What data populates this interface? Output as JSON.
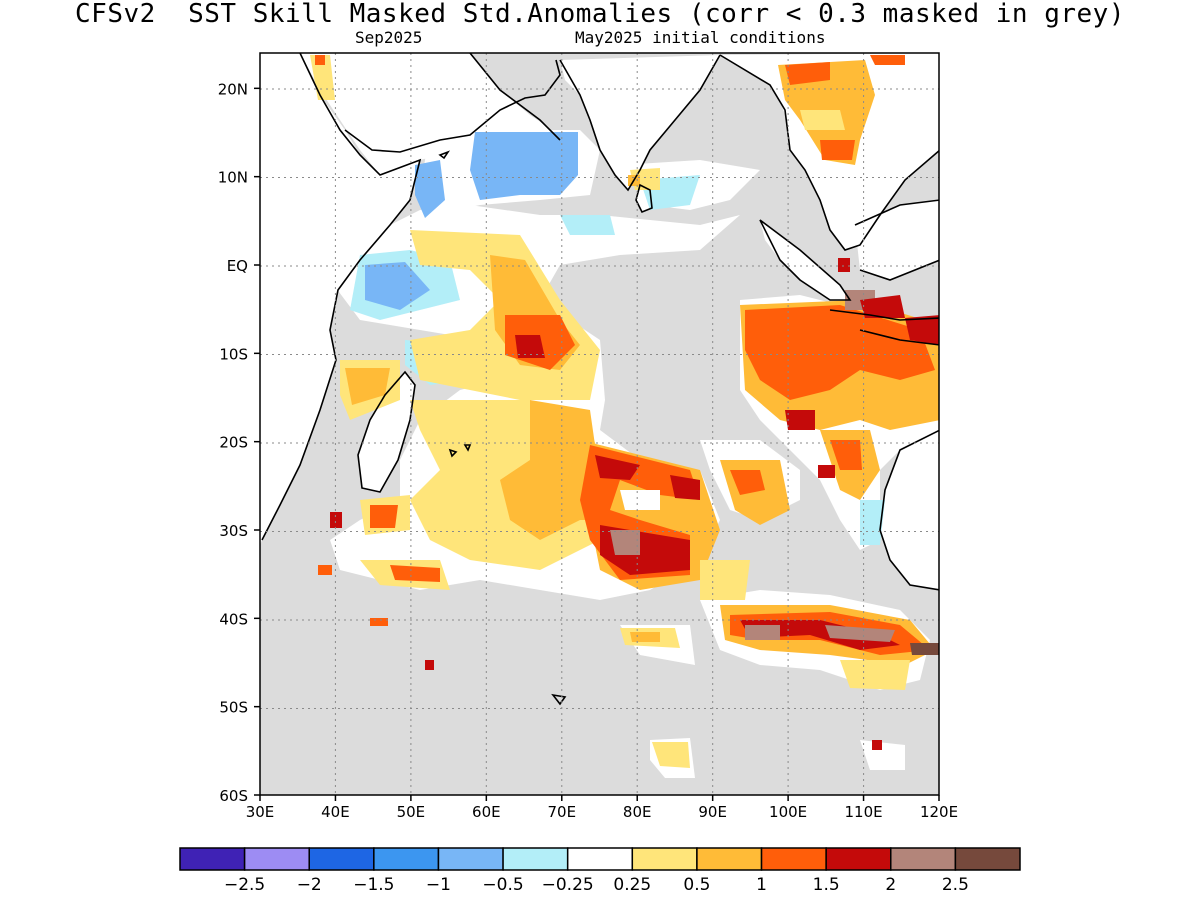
{
  "title": "CFSv2  SST Skill Masked Std.Anomalies (corr < 0.3 masked in grey)",
  "subtitle_left": "Sep2025",
  "subtitle_right": "May2025 initial conditions",
  "colors": {
    "mask_grey": "#dcdcdc",
    "land_border": "#000000",
    "grid": "#8a8a8a"
  },
  "map": {
    "lat_ticks": [
      "20N",
      "10N",
      "EQ",
      "10S",
      "20S",
      "30S",
      "40S",
      "50S",
      "60S"
    ],
    "lon_ticks": [
      "30E",
      "40E",
      "50E",
      "60E",
      "70E",
      "80E",
      "90E",
      "100E",
      "110E",
      "120E"
    ]
  },
  "colorbar": {
    "colors": [
      "#3f22b5",
      "#9d8cf3",
      "#1e66e4",
      "#3c96f0",
      "#78b6f6",
      "#b3eef8",
      "#ffffff",
      "#ffe57a",
      "#ffbb37",
      "#ff5e0a",
      "#c40a0a",
      "#b3857a",
      "#76493c"
    ],
    "labels": [
      "-2.5",
      "-2",
      "-1.5",
      "-1",
      "-0.5",
      "-0.25",
      "0.25",
      "0.5",
      "1",
      "1.5",
      "2",
      "2.5"
    ]
  }
}
